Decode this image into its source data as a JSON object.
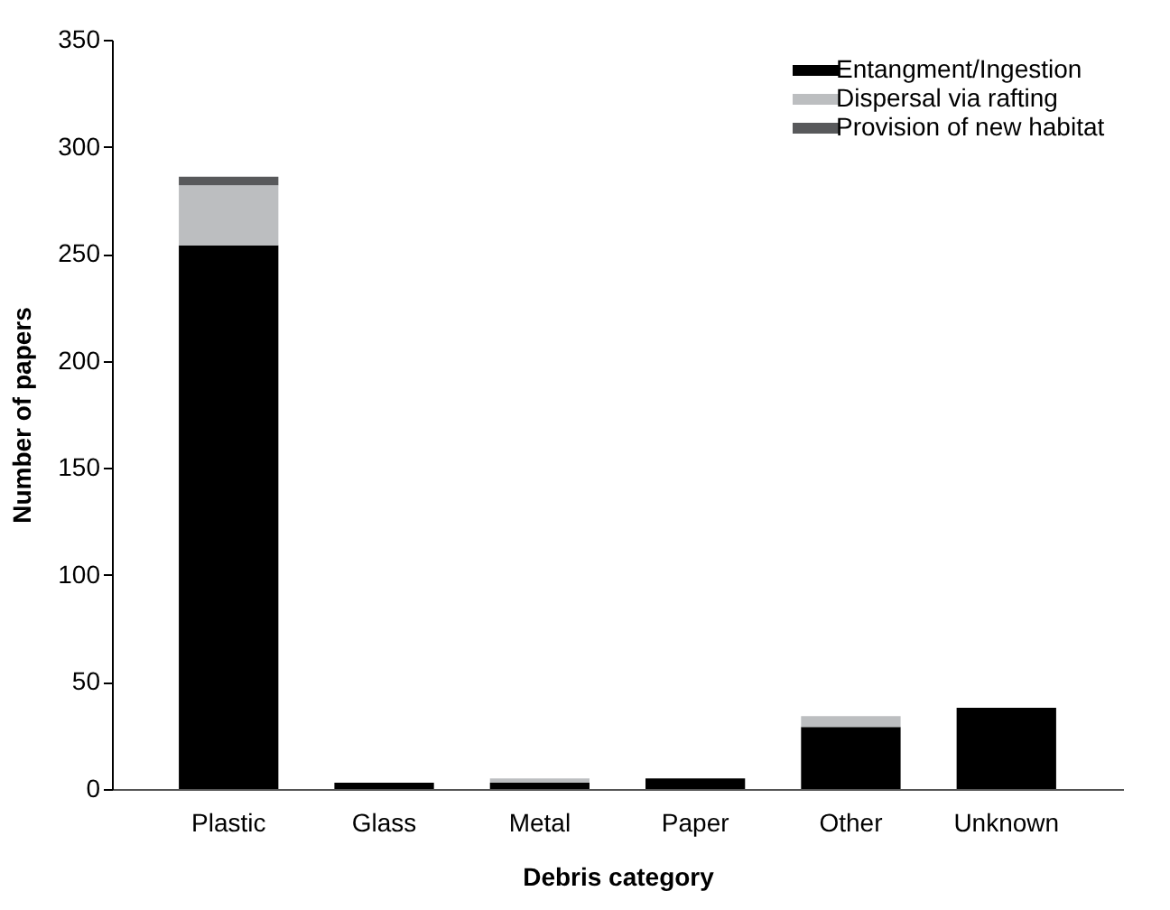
{
  "chart_data": {
    "type": "bar",
    "stacked": true,
    "xlabel": "Debris category",
    "ylabel": "Number of papers",
    "categories": [
      "Plastic",
      "Glass",
      "Metal",
      "Paper",
      "Other",
      "Unknown"
    ],
    "series": [
      {
        "name": "Entangment/Ingestion",
        "color": "#000000",
        "values": [
          254,
          3,
          3,
          5,
          29,
          38
        ]
      },
      {
        "name": "Dispersal via rafting",
        "color": "#bcbec0",
        "values": [
          28,
          0,
          2,
          0,
          5,
          0
        ]
      },
      {
        "name": "Provision of new habitat",
        "color": "#58595b",
        "values": [
          4,
          0,
          0,
          0,
          0,
          0
        ]
      }
    ],
    "ylim": [
      0,
      350
    ],
    "yticks": [
      0,
      50,
      100,
      150,
      200,
      250,
      300,
      350
    ],
    "grid": false,
    "legend": "top right"
  }
}
